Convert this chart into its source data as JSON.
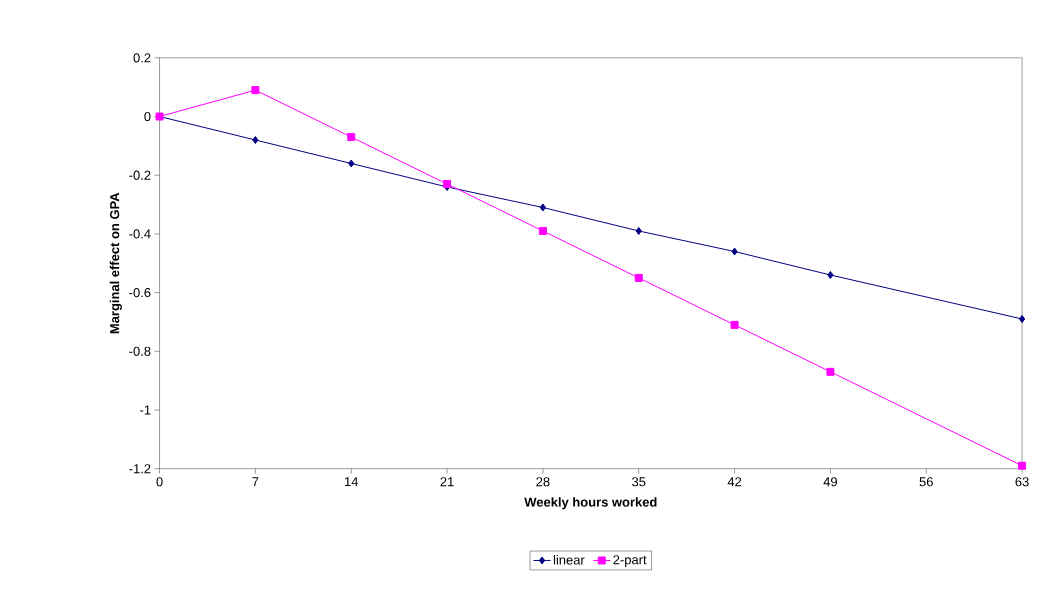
{
  "chart_data": {
    "type": "line",
    "xlabel": "Weekly hours worked",
    "ylabel": "Marginal effect on GPA",
    "x": [
      0,
      7,
      14,
      21,
      28,
      35,
      42,
      49,
      63
    ],
    "series": [
      {
        "name": "linear",
        "color": "#000080",
        "marker": "diamond",
        "values": [
          0,
          -0.08,
          -0.16,
          -0.24,
          -0.31,
          -0.39,
          -0.46,
          -0.54,
          -0.69
        ]
      },
      {
        "name": "2-part",
        "color": "#ff00ff",
        "marker": "square",
        "values": [
          0,
          0.09,
          -0.07,
          -0.23,
          -0.39,
          -0.55,
          -0.71,
          -0.87,
          -1.19
        ]
      }
    ],
    "xlim": [
      0,
      63
    ],
    "xticks": [
      0,
      7,
      14,
      21,
      28,
      35,
      42,
      49,
      56,
      63
    ],
    "ylim": [
      -1.2,
      0.2
    ],
    "yticks": [
      -1.2,
      -1,
      -0.8,
      -0.6,
      -0.4,
      -0.2,
      0,
      0.2
    ],
    "grid": false,
    "legend": "bottom",
    "line_style": "solid"
  }
}
